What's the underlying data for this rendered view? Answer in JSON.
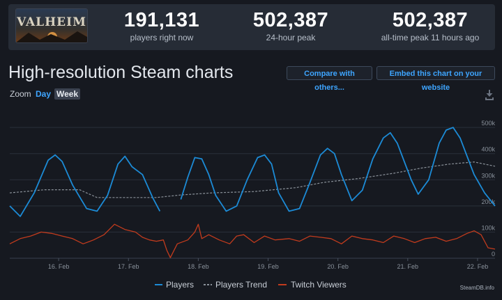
{
  "game": {
    "logo_icon": "valheim-logo",
    "logo_text": "VALHEIM"
  },
  "stats": [
    {
      "value": "191,131",
      "label": "players right now"
    },
    {
      "value": "502,387",
      "label": "24-hour peak"
    },
    {
      "value": "502,387",
      "label": "all-time peak 11 hours ago"
    }
  ],
  "page": {
    "title": "High-resolution Steam charts",
    "compare_button": "Compare with others...",
    "embed_button": "Embed this chart on your website"
  },
  "zoom": {
    "label": "Zoom",
    "options": [
      "Day",
      "Week"
    ],
    "selected": "Week"
  },
  "icons": {
    "download": "download-icon"
  },
  "colors": {
    "players": "#1c8bd6",
    "trend": "#8a9199",
    "twitch": "#c23b1d",
    "link": "#3ea5ff"
  },
  "credit": "SteamDB.info",
  "chart_data": {
    "type": "line",
    "title": "High-resolution Steam charts",
    "xlabel": "",
    "ylabel": "",
    "x_ticks": [
      "16. Feb",
      "17. Feb",
      "18. Feb",
      "19. Feb",
      "20. Feb",
      "21. Feb",
      "22. Feb"
    ],
    "y_ticks": [
      "500k",
      "400k",
      "300k",
      "200k",
      "100k",
      "0"
    ],
    "y_tick_values": [
      500000,
      400000,
      300000,
      200000,
      100000,
      0
    ],
    "x_range": [
      15.3,
      22.25
    ],
    "ylim": [
      0,
      535000
    ],
    "x_unit": "day of February (fractional)",
    "legend": [
      "Players",
      "Players Trend",
      "Twitch Viewers"
    ],
    "legend_position": "bottom",
    "series": [
      {
        "name": "Players",
        "points": [
          [
            15.3,
            200000
          ],
          [
            15.45,
            160000
          ],
          [
            15.65,
            250000
          ],
          [
            15.85,
            375000
          ],
          [
            15.95,
            395000
          ],
          [
            16.05,
            370000
          ],
          [
            16.2,
            280000
          ],
          [
            16.3,
            235000
          ],
          [
            16.4,
            190000
          ],
          [
            16.55,
            180000
          ],
          [
            16.7,
            240000
          ],
          [
            16.85,
            360000
          ],
          [
            16.95,
            390000
          ],
          [
            17.05,
            350000
          ],
          [
            17.1,
            340000
          ],
          [
            17.2,
            320000
          ],
          [
            17.35,
            230000
          ],
          [
            17.45,
            180000
          ],
          [
            null,
            null
          ],
          [
            17.75,
            225000
          ],
          [
            17.85,
            310000
          ],
          [
            17.95,
            385000
          ],
          [
            18.05,
            380000
          ],
          [
            18.15,
            320000
          ],
          [
            18.25,
            240000
          ],
          [
            18.4,
            180000
          ],
          [
            18.55,
            200000
          ],
          [
            18.7,
            300000
          ],
          [
            18.85,
            385000
          ],
          [
            18.95,
            395000
          ],
          [
            19.05,
            360000
          ],
          [
            19.15,
            250000
          ],
          [
            19.3,
            180000
          ],
          [
            19.45,
            190000
          ],
          [
            19.6,
            290000
          ],
          [
            19.75,
            395000
          ],
          [
            19.85,
            420000
          ],
          [
            19.95,
            400000
          ],
          [
            20.05,
            320000
          ],
          [
            20.2,
            220000
          ],
          [
            20.35,
            260000
          ],
          [
            20.5,
            380000
          ],
          [
            20.65,
            460000
          ],
          [
            20.75,
            480000
          ],
          [
            20.85,
            440000
          ],
          [
            20.95,
            370000
          ],
          [
            21.05,
            300000
          ],
          [
            21.15,
            245000
          ],
          [
            21.3,
            300000
          ],
          [
            21.45,
            440000
          ],
          [
            21.55,
            490000
          ],
          [
            21.65,
            500000
          ],
          [
            21.75,
            460000
          ],
          [
            21.85,
            390000
          ],
          [
            21.95,
            320000
          ],
          [
            22.1,
            250000
          ],
          [
            22.25,
            200000
          ]
        ]
      },
      {
        "name": "Players Trend",
        "points": [
          [
            15.3,
            250000
          ],
          [
            15.8,
            262000
          ],
          [
            16.3,
            262000
          ],
          [
            16.55,
            232000
          ],
          [
            17.1,
            232000
          ],
          [
            17.4,
            232000
          ],
          [
            17.75,
            242000
          ],
          [
            18.2,
            250000
          ],
          [
            18.8,
            255000
          ],
          [
            19.4,
            270000
          ],
          [
            19.8,
            290000
          ],
          [
            20.3,
            305000
          ],
          [
            20.8,
            325000
          ],
          [
            21.2,
            345000
          ],
          [
            21.6,
            360000
          ],
          [
            21.95,
            368000
          ],
          [
            22.25,
            352000
          ]
        ]
      },
      {
        "name": "Twitch Viewers",
        "points": [
          [
            15.3,
            55000
          ],
          [
            15.45,
            75000
          ],
          [
            15.6,
            85000
          ],
          [
            15.75,
            100000
          ],
          [
            15.9,
            95000
          ],
          [
            16.05,
            85000
          ],
          [
            16.2,
            75000
          ],
          [
            16.35,
            55000
          ],
          [
            16.5,
            70000
          ],
          [
            16.65,
            90000
          ],
          [
            16.8,
            130000
          ],
          [
            16.95,
            110000
          ],
          [
            17.1,
            100000
          ],
          [
            17.2,
            80000
          ],
          [
            17.3,
            70000
          ],
          [
            17.4,
            65000
          ],
          [
            17.5,
            70000
          ],
          [
            17.55,
            30000
          ],
          [
            17.6,
            2000
          ],
          [
            17.7,
            55000
          ],
          [
            17.85,
            70000
          ],
          [
            17.95,
            100000
          ],
          [
            18.0,
            130000
          ],
          [
            18.05,
            75000
          ],
          [
            18.15,
            90000
          ],
          [
            18.3,
            70000
          ],
          [
            18.45,
            55000
          ],
          [
            18.55,
            85000
          ],
          [
            18.65,
            90000
          ],
          [
            18.8,
            60000
          ],
          [
            18.95,
            85000
          ],
          [
            19.1,
            70000
          ],
          [
            19.3,
            75000
          ],
          [
            19.45,
            65000
          ],
          [
            19.6,
            85000
          ],
          [
            19.75,
            80000
          ],
          [
            19.9,
            75000
          ],
          [
            20.05,
            55000
          ],
          [
            20.2,
            85000
          ],
          [
            20.35,
            75000
          ],
          [
            20.5,
            70000
          ],
          [
            20.65,
            60000
          ],
          [
            20.8,
            85000
          ],
          [
            20.95,
            75000
          ],
          [
            21.1,
            60000
          ],
          [
            21.25,
            75000
          ],
          [
            21.4,
            80000
          ],
          [
            21.55,
            65000
          ],
          [
            21.7,
            75000
          ],
          [
            21.85,
            95000
          ],
          [
            21.95,
            105000
          ],
          [
            22.05,
            90000
          ],
          [
            22.15,
            40000
          ],
          [
            22.25,
            35000
          ]
        ]
      }
    ]
  }
}
